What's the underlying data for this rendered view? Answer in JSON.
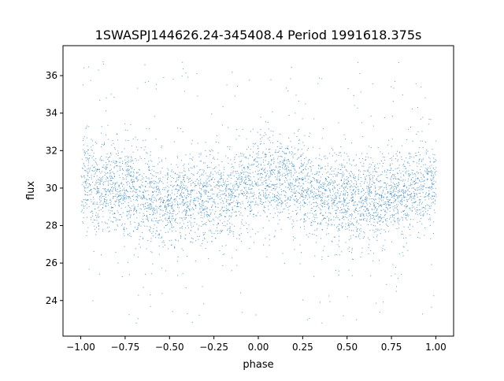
{
  "chart_data": {
    "type": "scatter",
    "title": "1SWASPJ144626.24-345408.4 Period 1991618.375s",
    "xlabel": "phase",
    "ylabel": "flux",
    "xlim": [
      -1.1,
      1.1
    ],
    "ylim": [
      22.1,
      37.6
    ],
    "xticks": [
      -1.0,
      -0.75,
      -0.5,
      -0.25,
      0.0,
      0.25,
      0.5,
      0.75,
      1.0
    ],
    "xtick_labels": [
      "−1.00",
      "−0.75",
      "−0.50",
      "−0.25",
      "0.00",
      "0.25",
      "0.50",
      "0.75",
      "1.00"
    ],
    "yticks": [
      24,
      26,
      28,
      30,
      32,
      34,
      36
    ],
    "ytick_labels": [
      "24",
      "26",
      "28",
      "30",
      "32",
      "34",
      "36"
    ],
    "grid": false,
    "point_color": "#1f77b4",
    "phase_bins": [
      -1.0,
      -0.875,
      -0.75,
      -0.625,
      -0.5,
      -0.375,
      -0.25,
      -0.125,
      0.0,
      0.125,
      0.25,
      0.375,
      0.5,
      0.625,
      0.75,
      0.875,
      1.0
    ],
    "mean_flux": [
      30.4,
      30.3,
      30.0,
      29.6,
      29.3,
      29.3,
      29.5,
      29.9,
      30.3,
      30.4,
      30.1,
      29.7,
      29.3,
      29.3,
      29.6,
      30.0,
      30.3
    ],
    "flux_spread": 1.2,
    "flux_range": [
      22.8,
      36.9
    ]
  }
}
